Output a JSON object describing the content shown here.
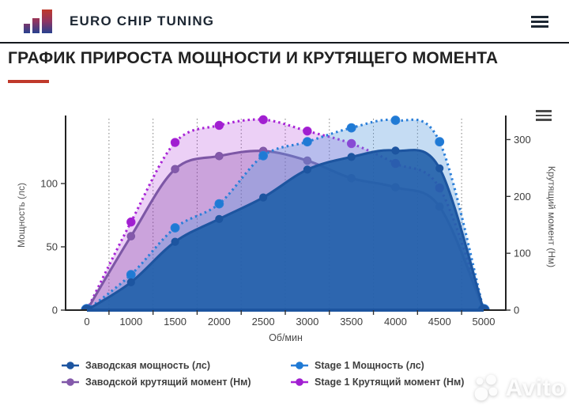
{
  "header": {
    "brand": "EURO CHIP TUNING",
    "logo_colors": {
      "top": "#c0392b",
      "bottom": "#27418f"
    },
    "menu_icon": "hamburger"
  },
  "page": {
    "title": "ГРАФИК ПРИРОСТА МОЩНОСТИ И КРУТЯЩЕГО МОМЕНТА",
    "accent_color": "#c0392b"
  },
  "chart_data": {
    "type": "area",
    "x": {
      "label": "Об/мин",
      "categories": [
        "0",
        "1000",
        "1500",
        "2000",
        "2500",
        "3000",
        "3500",
        "4000",
        "4500",
        "5000"
      ]
    },
    "power_axis": {
      "side": "left",
      "label": "Мощность (лс)",
      "ticks": [
        0,
        50,
        100
      ],
      "max": 150
    },
    "torque_axis": {
      "side": "right",
      "label": "Крутящий момент (Нм)",
      "ticks": [
        0,
        100,
        200,
        300
      ],
      "max": 334
    },
    "grid": "vertical-dotted-between-categories",
    "legend_position": "bottom",
    "draw_order": [
      3,
      2,
      1,
      0
    ],
    "series": [
      {
        "name": "Заводская мощность (лс)",
        "axis": "power",
        "style": "solid",
        "line_color": "#1d55a0",
        "marker_color": "#1d55a0",
        "fill": "rgba(32,95,170,0.9)",
        "marker_radius": 4.6,
        "values": [
          0,
          22,
          54,
          72,
          89,
          111,
          121,
          126,
          112,
          0
        ]
      },
      {
        "name": "Stage 1 Мощность (лс)",
        "axis": "power",
        "style": "dotted",
        "line_color": "#2b7fd9",
        "marker_color": "#1f7ad4",
        "fill": "rgba(90,155,220,0.35)",
        "marker_radius": 5.4,
        "values": [
          0,
          28,
          65,
          84,
          122,
          133,
          144,
          150,
          133,
          0
        ]
      },
      {
        "name": "Заводской крутящий момент (Нм)",
        "axis": "torque",
        "style": "solid",
        "line_color": "#7d57a6",
        "marker_color": "#8459ab",
        "fill": "rgba(125,60,160,0.3)",
        "marker_radius": 4.8,
        "values": [
          0,
          130,
          248,
          271,
          280,
          263,
          232,
          216,
          182,
          0
        ]
      },
      {
        "name": "Stage 1 Крутящий момент (Нм)",
        "axis": "torque",
        "style": "dotted",
        "line_color": "#a823d6",
        "marker_color": "#a01fd0",
        "fill": "rgba(170,40,215,0.22)",
        "marker_radius": 5.2,
        "values": [
          0,
          155,
          295,
          325,
          335,
          315,
          293,
          258,
          215,
          0
        ]
      }
    ]
  },
  "watermark": {
    "text": "Avito"
  }
}
